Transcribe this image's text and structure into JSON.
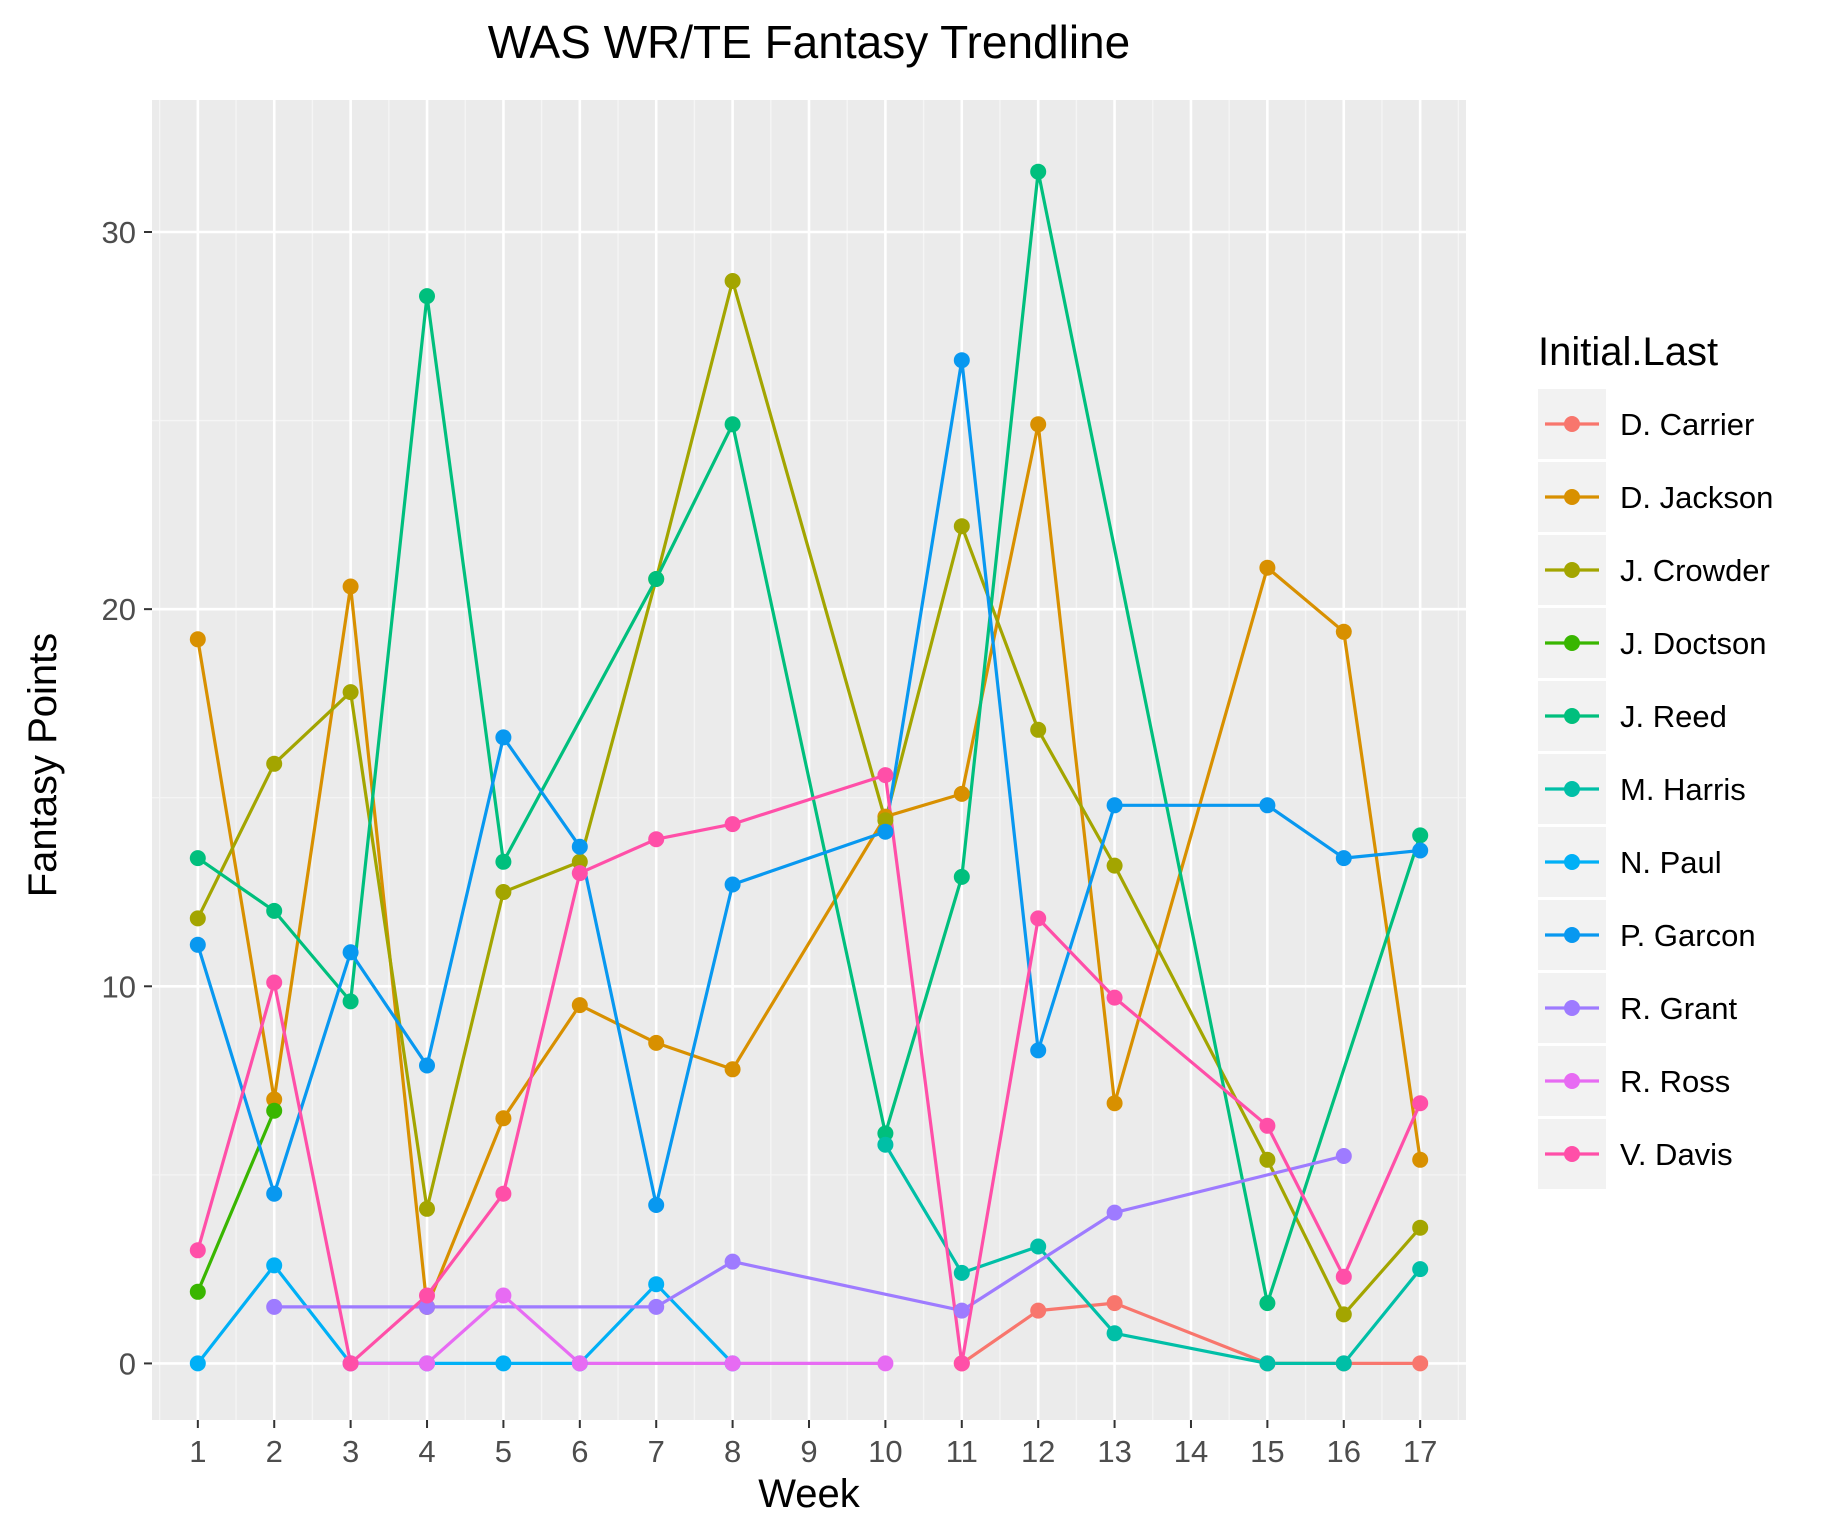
{
  "chart_data": {
    "type": "line",
    "title": "WAS WR/TE Fantasy Trendline",
    "xlabel": "Week",
    "ylabel": "Fantasy Points",
    "x_categories": [
      "1",
      "2",
      "3",
      "4",
      "5",
      "6",
      "7",
      "8",
      "9",
      "10",
      "11",
      "12",
      "13",
      "14",
      "15",
      "16",
      "17"
    ],
    "y_ticks": [
      0,
      10,
      20,
      30
    ],
    "ylim": [
      -1.5,
      33.5
    ],
    "grid": true,
    "legend": {
      "title": "Initial.Last",
      "placement": "right"
    },
    "series": [
      {
        "name": "D. Carrier",
        "color": "#F8766D",
        "points": [
          [
            11,
            0
          ],
          [
            12,
            1.4
          ],
          [
            13,
            1.6
          ],
          [
            15,
            0
          ],
          [
            16,
            0
          ],
          [
            17,
            0
          ]
        ]
      },
      {
        "name": "D. Jackson",
        "color": "#D89000",
        "points": [
          [
            1,
            19.2
          ],
          [
            2,
            7.0
          ],
          [
            3,
            20.6
          ],
          [
            4,
            1.5
          ],
          [
            5,
            6.5
          ],
          [
            6,
            9.5
          ],
          [
            7,
            8.5
          ],
          [
            8,
            7.8
          ],
          [
            10,
            14.5
          ],
          [
            11,
            15.1
          ],
          [
            12,
            24.9
          ],
          [
            13,
            6.9
          ],
          [
            15,
            21.1
          ],
          [
            16,
            19.4
          ],
          [
            17,
            5.4
          ]
        ]
      },
      {
        "name": "J. Crowder",
        "color": "#A3A500",
        "points": [
          [
            1,
            11.8
          ],
          [
            2,
            15.9
          ],
          [
            3,
            17.8
          ],
          [
            4,
            4.1
          ],
          [
            5,
            12.5
          ],
          [
            6,
            13.3
          ],
          [
            7,
            20.8
          ],
          [
            8,
            28.7
          ],
          [
            10,
            14.4
          ],
          [
            11,
            22.2
          ],
          [
            12,
            16.8
          ],
          [
            13,
            13.2
          ],
          [
            15,
            5.4
          ],
          [
            16,
            1.3
          ],
          [
            17,
            3.6
          ]
        ]
      },
      {
        "name": "J. Doctson",
        "color": "#39B600",
        "points": [
          [
            1,
            1.9
          ],
          [
            2,
            6.7
          ]
        ]
      },
      {
        "name": "J. Reed",
        "color": "#00BF7D",
        "points": [
          [
            1,
            13.4
          ],
          [
            2,
            12.0
          ],
          [
            3,
            9.6
          ],
          [
            4,
            28.3
          ],
          [
            5,
            13.3
          ],
          [
            7,
            20.8
          ],
          [
            8,
            24.9
          ],
          [
            10,
            6.1
          ],
          [
            11,
            12.9
          ],
          [
            12,
            31.6
          ],
          [
            15,
            1.6
          ],
          [
            17,
            14.0
          ]
        ]
      },
      {
        "name": "M. Harris",
        "color": "#00BFA7",
        "points": [
          [
            10,
            5.8
          ],
          [
            11,
            2.4
          ],
          [
            12,
            3.1
          ],
          [
            13,
            0.8
          ],
          [
            15,
            0
          ],
          [
            16,
            0
          ],
          [
            17,
            2.5
          ]
        ]
      },
      {
        "name": "N. Paul",
        "color": "#00B0F6",
        "points": [
          [
            1,
            0
          ],
          [
            2,
            2.6
          ],
          [
            3,
            0
          ],
          [
            4,
            0
          ],
          [
            5,
            0
          ],
          [
            6,
            0
          ],
          [
            7,
            2.1
          ],
          [
            8,
            0
          ]
        ]
      },
      {
        "name": "P. Garcon",
        "color": "#0898F0",
        "points": [
          [
            1,
            11.1
          ],
          [
            2,
            4.5
          ],
          [
            3,
            10.9
          ],
          [
            4,
            7.9
          ],
          [
            5,
            16.6
          ],
          [
            6,
            13.7
          ],
          [
            7,
            4.2
          ],
          [
            8,
            12.7
          ],
          [
            10,
            14.1
          ],
          [
            11,
            26.6
          ],
          [
            12,
            8.3
          ],
          [
            13,
            14.8
          ],
          [
            15,
            14.8
          ],
          [
            16,
            13.4
          ],
          [
            17,
            13.6
          ]
        ]
      },
      {
        "name": "R. Grant",
        "color": "#9E7BFF",
        "points": [
          [
            2,
            1.5
          ],
          [
            4,
            1.5
          ],
          [
            7,
            1.5
          ],
          [
            8,
            2.7
          ],
          [
            11,
            1.4
          ],
          [
            13,
            4.0
          ],
          [
            16,
            5.5
          ]
        ]
      },
      {
        "name": "R. Ross",
        "color": "#E76BF3",
        "points": [
          [
            3,
            0
          ],
          [
            4,
            0
          ],
          [
            5,
            1.8
          ],
          [
            6,
            0
          ],
          [
            8,
            0
          ],
          [
            10,
            0
          ]
        ]
      },
      {
        "name": "V. Davis",
        "color": "#FF4FA8",
        "points": [
          [
            1,
            3.0
          ],
          [
            2,
            10.1
          ],
          [
            3,
            0
          ],
          [
            4,
            1.8
          ],
          [
            5,
            4.5
          ],
          [
            6,
            13.0
          ],
          [
            7,
            13.9
          ],
          [
            8,
            14.3
          ],
          [
            10,
            15.6
          ],
          [
            11,
            0
          ],
          [
            12,
            11.8
          ],
          [
            13,
            9.7
          ],
          [
            15,
            6.3
          ],
          [
            16,
            2.3
          ],
          [
            17,
            6.9
          ]
        ]
      }
    ]
  }
}
